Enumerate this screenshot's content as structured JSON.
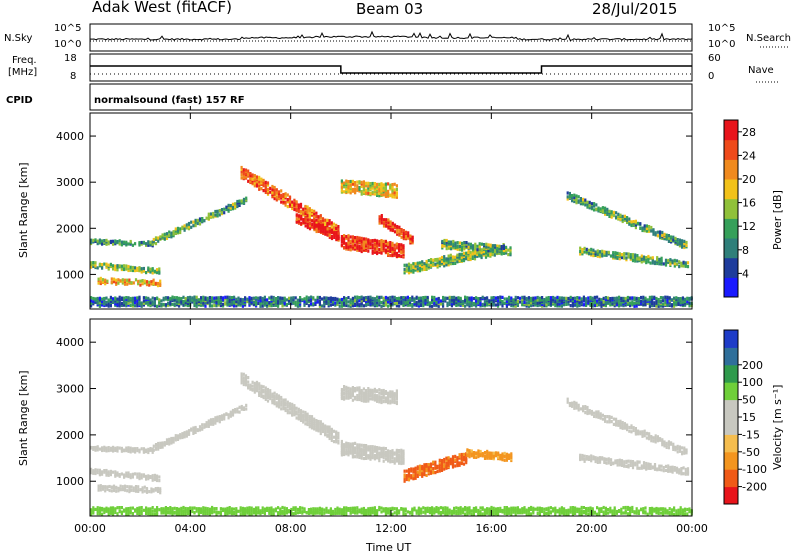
{
  "header": {
    "site": "Adak West (fitACF)",
    "beam": "Beam 03",
    "date": "28/Jul/2015"
  },
  "top_strips": {
    "nsky_label": "N.Sky",
    "nsky_ticks": [
      "10^5",
      "10^0"
    ],
    "nsearch_label": "N.Search",
    "nsearch_ticks": [
      "10^5",
      "10^0"
    ],
    "freq_label": "Freq.",
    "freq_unit": "[MHz]",
    "freq_ticks": [
      "18",
      "8"
    ],
    "nave_label": "Nave",
    "nave_ticks": [
      "60",
      "0"
    ],
    "cpid_label": "CPID",
    "cpid_value": "normalsound (fast) 157 RF"
  },
  "colors": {
    "power_scale": [
      "#1a1aff",
      "#1e3c9c",
      "#2f7f7a",
      "#36a05a",
      "#90c13a",
      "#f2c21a",
      "#f08a1e",
      "#ef4a1a",
      "#e8141b"
    ],
    "velocity_scale": [
      "#e8141b",
      "#f05a17",
      "#f3951f",
      "#f5bd4e",
      "#c8c8c0",
      "#c8c8c0",
      "#6fcf3a",
      "#2f9a4c",
      "#2f6f9a",
      "#1e3cc8"
    ]
  },
  "chart_data": [
    {
      "type": "heatmap",
      "panel": "power",
      "ylabel": "Slant Range [km]",
      "yticks": [
        "1000",
        "2000",
        "3000",
        "4000"
      ],
      "ylim": [
        250,
        4500
      ],
      "xlim": [
        0,
        24
      ],
      "xticks": [
        "00:00",
        "04:00",
        "08:00",
        "12:00",
        "16:00",
        "20:00",
        "00:00"
      ],
      "colorbar": {
        "label": "Power [dB]",
        "ticks": [
          "4",
          "8",
          "12",
          "16",
          "20",
          "24",
          "28"
        ],
        "range": [
          0,
          30
        ]
      },
      "echo_bands": [
        {
          "t": [
            0.0,
            2.5
          ],
          "range_start": [
            1700,
            1650
          ],
          "range_end": [
            1700,
            1650
          ],
          "thickness": 90,
          "power": 10
        },
        {
          "t": [
            0.0,
            2.8
          ],
          "range_start": [
            1200,
            1050
          ],
          "range_end": [
            1200,
            1050
          ],
          "thickness": 110,
          "power": 14
        },
        {
          "t": [
            0.3,
            2.8
          ],
          "range_start": [
            850,
            800
          ],
          "range_end": [
            850,
            800
          ],
          "thickness": 120,
          "power": 20
        },
        {
          "t": [
            2.5,
            6.2
          ],
          "range_start": [
            1700,
            2600
          ],
          "range_end": [
            1700,
            2600
          ],
          "thickness": 130,
          "power": 12
        },
        {
          "t": [
            6.0,
            9.9
          ],
          "range_start": [
            3200,
            1900
          ],
          "range_end": [
            3200,
            1900
          ],
          "thickness": 260,
          "power": 24
        },
        {
          "t": [
            8.2,
            9.9
          ],
          "range_start": [
            2200,
            1800
          ],
          "range_end": [
            2200,
            1800
          ],
          "thickness": 200,
          "power": 28
        },
        {
          "t": [
            10.0,
            12.2
          ],
          "range_start": [
            2900,
            2800
          ],
          "range_end": [
            2900,
            2800
          ],
          "thickness": 280,
          "power": 18
        },
        {
          "t": [
            10.0,
            12.5
          ],
          "range_start": [
            1700,
            1500
          ],
          "range_end": [
            1700,
            1500
          ],
          "thickness": 300,
          "power": 26
        },
        {
          "t": [
            11.5,
            12.9
          ],
          "range_start": [
            2200,
            1700
          ],
          "range_end": [
            2200,
            1700
          ],
          "thickness": 200,
          "power": 26
        },
        {
          "t": [
            12.5,
            16.5
          ],
          "range_start": [
            1100,
            1550
          ],
          "range_end": [
            1100,
            1550
          ],
          "thickness": 200,
          "power": 14
        },
        {
          "t": [
            14.0,
            16.8
          ],
          "range_start": [
            1650,
            1500
          ],
          "range_end": [
            1650,
            1500
          ],
          "thickness": 180,
          "power": 12
        },
        {
          "t": [
            19.0,
            23.8
          ],
          "range_start": [
            2700,
            1600
          ],
          "range_end": [
            2700,
            1600
          ],
          "thickness": 150,
          "power": 12
        },
        {
          "t": [
            19.5,
            23.8
          ],
          "range_start": [
            1500,
            1200
          ],
          "range_end": [
            1500,
            1200
          ],
          "thickness": 140,
          "power": 12
        },
        {
          "t": [
            0.0,
            24.0
          ],
          "range_start": [
            400,
            400
          ],
          "range_end": [
            400,
            400
          ],
          "thickness": 200,
          "power": 8
        }
      ]
    },
    {
      "type": "heatmap",
      "panel": "velocity",
      "ylabel": "Slant Range [km]",
      "yticks": [
        "1000",
        "2000",
        "3000",
        "4000"
      ],
      "ylim": [
        250,
        4500
      ],
      "xlim": [
        0,
        24
      ],
      "xticks": [
        "00:00",
        "04:00",
        "08:00",
        "12:00",
        "16:00",
        "20:00",
        "00:00"
      ],
      "xlabel": "Time UT",
      "colorbar": {
        "label": "Velocity [m s⁻¹]",
        "ticks": [
          "-200",
          "-100",
          "-50",
          "-15",
          "15",
          "50",
          "100",
          "200"
        ]
      },
      "echo_bands": [
        {
          "t": [
            0.0,
            2.5
          ],
          "range_start": [
            1700,
            1650
          ],
          "range_end": [
            1700,
            1650
          ],
          "thickness": 90,
          "velocity": 0
        },
        {
          "t": [
            0.0,
            2.8
          ],
          "range_start": [
            1200,
            1050
          ],
          "range_end": [
            1200,
            1050
          ],
          "thickness": 110,
          "velocity": 0
        },
        {
          "t": [
            0.3,
            2.8
          ],
          "range_start": [
            850,
            800
          ],
          "range_end": [
            850,
            800
          ],
          "thickness": 120,
          "velocity": 0
        },
        {
          "t": [
            2.5,
            6.2
          ],
          "range_start": [
            1700,
            2600
          ],
          "range_end": [
            1700,
            2600
          ],
          "thickness": 130,
          "velocity": 0
        },
        {
          "t": [
            6.0,
            9.9
          ],
          "range_start": [
            3200,
            1900
          ],
          "range_end": [
            3200,
            1900
          ],
          "thickness": 260,
          "velocity": 0
        },
        {
          "t": [
            10.0,
            12.2
          ],
          "range_start": [
            2900,
            2800
          ],
          "range_end": [
            2900,
            2800
          ],
          "thickness": 280,
          "velocity": 0
        },
        {
          "t": [
            10.0,
            12.5
          ],
          "range_start": [
            1700,
            1500
          ],
          "range_end": [
            1700,
            1500
          ],
          "thickness": 300,
          "velocity": 0
        },
        {
          "t": [
            12.5,
            15.0
          ],
          "range_start": [
            1100,
            1500
          ],
          "range_end": [
            1100,
            1500
          ],
          "thickness": 250,
          "velocity": -80
        },
        {
          "t": [
            15.0,
            16.8
          ],
          "range_start": [
            1600,
            1500
          ],
          "range_end": [
            1600,
            1500
          ],
          "thickness": 160,
          "velocity": -40
        },
        {
          "t": [
            19.0,
            23.8
          ],
          "range_start": [
            2700,
            1600
          ],
          "range_end": [
            2700,
            1600
          ],
          "thickness": 150,
          "velocity": 0
        },
        {
          "t": [
            19.5,
            23.8
          ],
          "range_start": [
            1500,
            1200
          ],
          "range_end": [
            1500,
            1200
          ],
          "thickness": 140,
          "velocity": 0
        },
        {
          "t": [
            0.0,
            24.0
          ],
          "range_start": [
            350,
            350
          ],
          "range_end": [
            350,
            350
          ],
          "thickness": 150,
          "velocity": 30
        }
      ]
    }
  ]
}
